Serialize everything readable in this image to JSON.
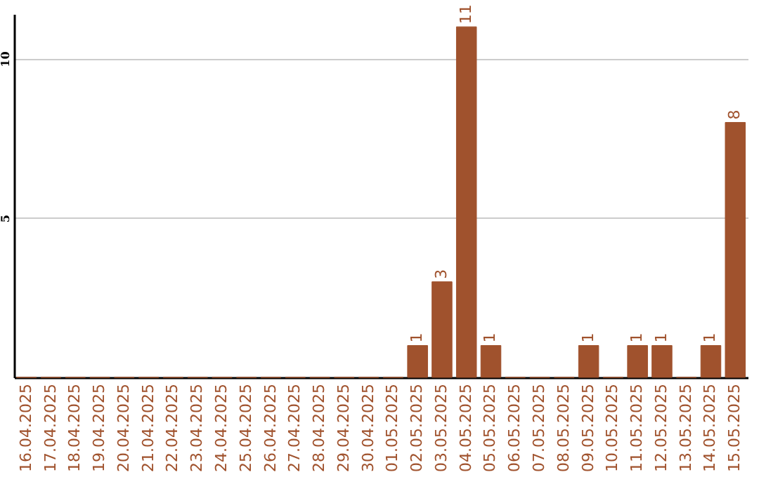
{
  "chart_data": {
    "type": "bar",
    "categories": [
      "16.04.2025",
      "17.04.2025",
      "18.04.2025",
      "19.04.2025",
      "20.04.2025",
      "21.04.2025",
      "22.04.2025",
      "23.04.2025",
      "24.04.2025",
      "25.04.2025",
      "26.04.2025",
      "27.04.2025",
      "28.04.2025",
      "29.04.2025",
      "30.04.2025",
      "01.05.2025",
      "02.05.2025",
      "03.05.2025",
      "04.05.2025",
      "05.05.2025",
      "06.05.2025",
      "07.05.2025",
      "08.05.2025",
      "09.05.2025",
      "10.05.2025",
      "11.05.2025",
      "12.05.2025",
      "13.05.2025",
      "14.05.2025",
      "15.05.2025"
    ],
    "values": [
      0,
      0,
      0,
      0,
      0,
      0,
      0,
      0,
      0,
      0,
      0,
      0,
      0,
      0,
      0,
      0,
      1,
      3,
      11,
      1,
      0,
      0,
      0,
      1,
      0,
      1,
      1,
      0,
      1,
      8
    ],
    "value_labels": [
      null,
      null,
      null,
      null,
      null,
      null,
      null,
      null,
      null,
      null,
      null,
      null,
      null,
      null,
      null,
      null,
      "1",
      "3",
      "11",
      "1",
      null,
      null,
      null,
      "1",
      null,
      "1",
      "1",
      null,
      "1",
      "8"
    ],
    "color": "#a0522d",
    "ylim": [
      0,
      11.4
    ],
    "yticks": [
      5,
      10
    ],
    "grid": "y"
  }
}
